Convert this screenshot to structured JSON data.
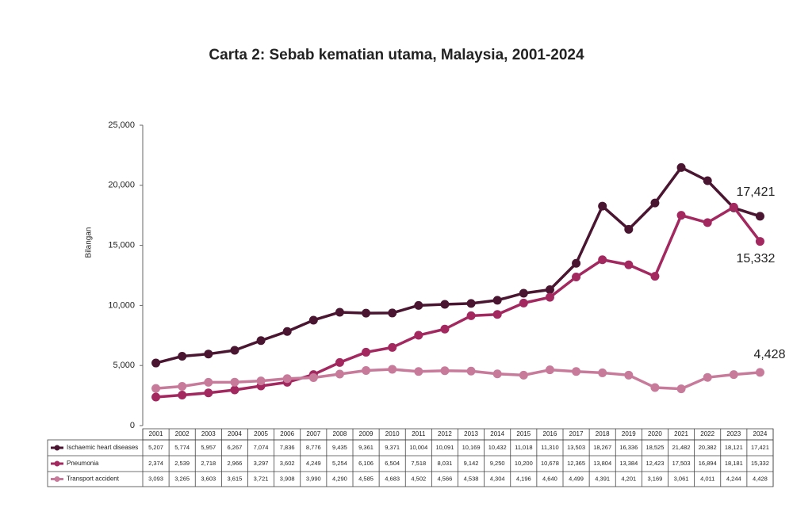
{
  "chart_data": {
    "type": "line",
    "title": "Carta 2: Sebab kematian utama, Malaysia, 2001-2024",
    "y_label": "Bilangan",
    "categories": [
      "2001",
      "2002",
      "2003",
      "2004",
      "2005",
      "2006",
      "2007",
      "2008",
      "2009",
      "2010",
      "2011",
      "2012",
      "2013",
      "2014",
      "2015",
      "2016",
      "2017",
      "2018",
      "2019",
      "2020",
      "2021",
      "2022",
      "2023",
      "2024"
    ],
    "ylim": [
      0,
      25000
    ],
    "yticks": [
      0,
      {
        "value": 5000,
        "label": "5,000"
      },
      {
        "value": 10000,
        "label": "10,000"
      },
      {
        "value": 15000,
        "label": "15,000"
      },
      {
        "value": 20000,
        "label": "20,000"
      },
      {
        "value": 25000,
        "label": "25,000"
      }
    ],
    "series": [
      {
        "name": "Ischaemic heart diseases",
        "color": "#4a1530",
        "values": [
          5207,
          5774,
          5957,
          6267,
          7074,
          7836,
          8776,
          9435,
          9361,
          9371,
          10004,
          10091,
          10169,
          10432,
          11018,
          11310,
          13503,
          18267,
          16336,
          18525,
          21482,
          20382,
          18121,
          17421
        ],
        "value_labels": [
          "5,207",
          "5,774",
          "5,957",
          "6,267",
          "7,074",
          "7,836",
          "8,776",
          "9,435",
          "9,361",
          "9,371",
          "10,004",
          "10,091",
          "10,169",
          "10,432",
          "11,018",
          "11,310",
          "13,503",
          "18,267",
          "16,336",
          "18,525",
          "21,482",
          "20,382",
          "18,121",
          "17,421"
        ]
      },
      {
        "name": "Pneumonia",
        "color": "#a3285f",
        "values": [
          2374,
          2539,
          2718,
          2966,
          3297,
          3602,
          4249,
          5254,
          6106,
          6504,
          7518,
          8031,
          9142,
          9250,
          10200,
          10678,
          12365,
          13804,
          13384,
          12423,
          17503,
          16894,
          18181,
          15332
        ],
        "value_labels": [
          "2,374",
          "2,539",
          "2,718",
          "2,966",
          "3,297",
          "3,602",
          "4,249",
          "5,254",
          "6,106",
          "6,504",
          "7,518",
          "8,031",
          "9,142",
          "9,250",
          "10,200",
          "10,678",
          "12,365",
          "13,804",
          "13,384",
          "12,423",
          "17,503",
          "16,894",
          "18,181",
          "15,332"
        ]
      },
      {
        "name": "Transport accident",
        "color": "#c87a9b",
        "values": [
          3093,
          3265,
          3603,
          3615,
          3721,
          3908,
          3990,
          4290,
          4585,
          4683,
          4502,
          4566,
          4538,
          4304,
          4196,
          4640,
          4499,
          4391,
          4201,
          3169,
          3061,
          4011,
          4244,
          4428
        ],
        "value_labels": [
          "3,093",
          "3,265",
          "3,603",
          "3,615",
          "3,721",
          "3,908",
          "3,990",
          "4,290",
          "4,585",
          "4,683",
          "4,502",
          "4,566",
          "4,538",
          "4,304",
          "4,196",
          "4,640",
          "4,499",
          "4,391",
          "4,201",
          "3,169",
          "3,061",
          "4,011",
          "4,244",
          "4,428"
        ]
      }
    ]
  }
}
